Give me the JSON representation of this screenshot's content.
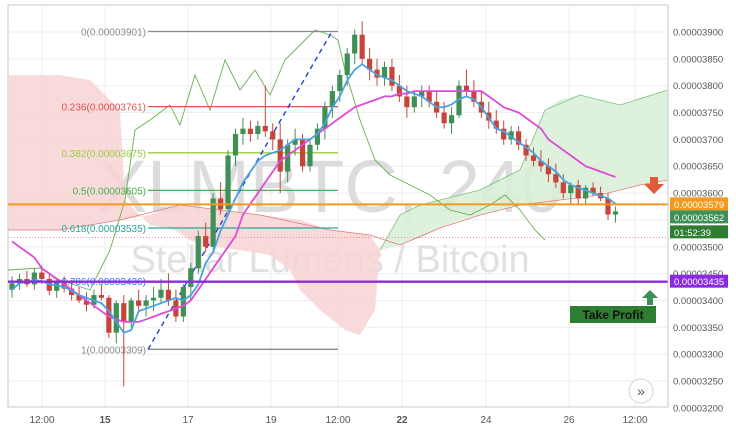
{
  "watermark": {
    "symbol": "XLMBTC, 240",
    "name": "Stellar Lumens / Bitcoin"
  },
  "colors": {
    "up": "#3f8f57",
    "down": "#c6453b",
    "tenkan": "#4aa3e0",
    "kijun": "#e04ad6",
    "chikou": "#6ab04c",
    "cloud_bull": "#d8eed7",
    "cloud_bear": "#f8d3d3",
    "entry_line": "#f29a1f",
    "target_line": "#8a2be2",
    "trend_line": "#1f3fd6",
    "current_price_bg": "#3f8f57",
    "countdown_bg": "#2e7d32"
  },
  "icons": {
    "sell_arrow": "down-arrow-icon",
    "profit_arrow": "up-arrow-icon",
    "scroll_button": "double-chevron-right-icon"
  },
  "labels": {
    "take_profit": "Take Profit",
    "scroll_glyph": "»"
  },
  "price_axis": {
    "ticks": [
      "0.00003900",
      "0.00003850",
      "0.00003800",
      "0.00003750",
      "0.00003700",
      "0.00003650",
      "0.00003600",
      "0.00003550",
      "0.00003500",
      "0.00003450",
      "0.00003400",
      "0.00003350",
      "0.00003300",
      "0.00003250",
      "0.00003200"
    ],
    "markers": {
      "entry": "0.00003579",
      "current": "0.00003562",
      "countdown": "01:52:39",
      "target": "0.00003435"
    }
  },
  "time_axis": {
    "ticks": [
      "12:00",
      "15",
      "17",
      "19",
      "12:00",
      "22",
      "24",
      "26",
      "12:00"
    ]
  },
  "chart_data": {
    "type": "candlestick",
    "symbol": "XLMBTC, 240",
    "ylim": [
      3.2e-05,
      3.9e-05
    ],
    "fibonacci": [
      {
        "ratio": "0",
        "price": "0.00003901",
        "label": "0(0.00003901)",
        "color": "#8a8a8a"
      },
      {
        "ratio": "0.236",
        "price": "0.00003761",
        "label": "0.236(0.00003761)",
        "color": "#d9534f"
      },
      {
        "ratio": "0.382",
        "price": "0.00003675",
        "label": "0.382(0.00003675)",
        "color": "#9ccc3c"
      },
      {
        "ratio": "0.5",
        "price": "0.00003605",
        "label": "0.5(0.00003605)",
        "color": "#4caf50"
      },
      {
        "ratio": "0.618",
        "price": "0.00003535",
        "label": "0.618(0.00003535)",
        "color": "#26a69a"
      },
      {
        "ratio": "0.786",
        "price": "0.00003436",
        "label": "0.786(0.00003436)",
        "color": "#2979ff"
      },
      {
        "ratio": "1",
        "price": "0.00003309",
        "label": "1(0.00003309)",
        "color": "#8a8a8a"
      }
    ],
    "horizontal_lines": [
      {
        "name": "entry",
        "price": 3.579e-05
      },
      {
        "name": "take_profit",
        "price": 3.435e-05
      }
    ],
    "candles": [
      {
        "o": 3420,
        "h": 3445,
        "l": 3405,
        "c": 3432
      },
      {
        "o": 3432,
        "h": 3450,
        "l": 3420,
        "c": 3440
      },
      {
        "o": 3440,
        "h": 3455,
        "l": 3425,
        "c": 3430
      },
      {
        "o": 3430,
        "h": 3460,
        "l": 3420,
        "c": 3452
      },
      {
        "o": 3452,
        "h": 3465,
        "l": 3430,
        "c": 3440
      },
      {
        "o": 3440,
        "h": 3450,
        "l": 3410,
        "c": 3418
      },
      {
        "o": 3418,
        "h": 3440,
        "l": 3405,
        "c": 3435
      },
      {
        "o": 3435,
        "h": 3445,
        "l": 3415,
        "c": 3422
      },
      {
        "o": 3422,
        "h": 3438,
        "l": 3400,
        "c": 3410
      },
      {
        "o": 3410,
        "h": 3425,
        "l": 3395,
        "c": 3400
      },
      {
        "o": 3400,
        "h": 3415,
        "l": 3380,
        "c": 3392
      },
      {
        "o": 3392,
        "h": 3420,
        "l": 3385,
        "c": 3410
      },
      {
        "o": 3410,
        "h": 3430,
        "l": 3400,
        "c": 3405
      },
      {
        "o": 3405,
        "h": 3410,
        "l": 3330,
        "c": 3340
      },
      {
        "o": 3340,
        "h": 3400,
        "l": 3320,
        "c": 3395
      },
      {
        "o": 3395,
        "h": 3410,
        "l": 3240,
        "c": 3360
      },
      {
        "o": 3360,
        "h": 3405,
        "l": 3350,
        "c": 3400
      },
      {
        "o": 3400,
        "h": 3420,
        "l": 3380,
        "c": 3390
      },
      {
        "o": 3390,
        "h": 3410,
        "l": 3370,
        "c": 3400
      },
      {
        "o": 3400,
        "h": 3425,
        "l": 3380,
        "c": 3405
      },
      {
        "o": 3405,
        "h": 3440,
        "l": 3395,
        "c": 3420
      },
      {
        "o": 3420,
        "h": 3450,
        "l": 3390,
        "c": 3400
      },
      {
        "o": 3400,
        "h": 3420,
        "l": 3360,
        "c": 3370
      },
      {
        "o": 3370,
        "h": 3430,
        "l": 3360,
        "c": 3425
      },
      {
        "o": 3425,
        "h": 3470,
        "l": 3400,
        "c": 3460
      },
      {
        "o": 3460,
        "h": 3530,
        "l": 3450,
        "c": 3520
      },
      {
        "o": 3520,
        "h": 3545,
        "l": 3490,
        "c": 3500
      },
      {
        "o": 3500,
        "h": 3600,
        "l": 3495,
        "c": 3590
      },
      {
        "o": 3590,
        "h": 3620,
        "l": 3560,
        "c": 3570
      },
      {
        "o": 3570,
        "h": 3680,
        "l": 3565,
        "c": 3670
      },
      {
        "o": 3670,
        "h": 3720,
        "l": 3650,
        "c": 3710
      },
      {
        "o": 3710,
        "h": 3740,
        "l": 3690,
        "c": 3720
      },
      {
        "o": 3720,
        "h": 3735,
        "l": 3695,
        "c": 3710
      },
      {
        "o": 3710,
        "h": 3735,
        "l": 3700,
        "c": 3725
      },
      {
        "o": 3725,
        "h": 3800,
        "l": 3705,
        "c": 3715
      },
      {
        "o": 3715,
        "h": 3730,
        "l": 3680,
        "c": 3700
      },
      {
        "o": 3700,
        "h": 3730,
        "l": 3600,
        "c": 3640
      },
      {
        "o": 3640,
        "h": 3700,
        "l": 3620,
        "c": 3690
      },
      {
        "o": 3690,
        "h": 3720,
        "l": 3670,
        "c": 3700
      },
      {
        "o": 3700,
        "h": 3710,
        "l": 3640,
        "c": 3650
      },
      {
        "o": 3650,
        "h": 3700,
        "l": 3640,
        "c": 3690
      },
      {
        "o": 3690,
        "h": 3730,
        "l": 3680,
        "c": 3720
      },
      {
        "o": 3720,
        "h": 3770,
        "l": 3700,
        "c": 3760
      },
      {
        "o": 3760,
        "h": 3800,
        "l": 3740,
        "c": 3790
      },
      {
        "o": 3790,
        "h": 3830,
        "l": 3770,
        "c": 3820
      },
      {
        "o": 3820,
        "h": 3870,
        "l": 3800,
        "c": 3860
      },
      {
        "o": 3860,
        "h": 3905,
        "l": 3840,
        "c": 3895
      },
      {
        "o": 3895,
        "h": 3920,
        "l": 3840,
        "c": 3850
      },
      {
        "o": 3850,
        "h": 3870,
        "l": 3810,
        "c": 3830
      },
      {
        "o": 3830,
        "h": 3850,
        "l": 3800,
        "c": 3815
      },
      {
        "o": 3815,
        "h": 3845,
        "l": 3800,
        "c": 3835
      },
      {
        "o": 3835,
        "h": 3850,
        "l": 3790,
        "c": 3800
      },
      {
        "o": 3800,
        "h": 3820,
        "l": 3770,
        "c": 3780
      },
      {
        "o": 3780,
        "h": 3800,
        "l": 3740,
        "c": 3760
      },
      {
        "o": 3760,
        "h": 3790,
        "l": 3750,
        "c": 3780
      },
      {
        "o": 3780,
        "h": 3800,
        "l": 3760,
        "c": 3790
      },
      {
        "o": 3790,
        "h": 3800,
        "l": 3760,
        "c": 3770
      },
      {
        "o": 3770,
        "h": 3790,
        "l": 3740,
        "c": 3750
      },
      {
        "o": 3750,
        "h": 3770,
        "l": 3720,
        "c": 3730
      },
      {
        "o": 3730,
        "h": 3760,
        "l": 3710,
        "c": 3745
      },
      {
        "o": 3745,
        "h": 3810,
        "l": 3740,
        "c": 3800
      },
      {
        "o": 3800,
        "h": 3830,
        "l": 3780,
        "c": 3790
      },
      {
        "o": 3790,
        "h": 3810,
        "l": 3760,
        "c": 3770
      },
      {
        "o": 3770,
        "h": 3790,
        "l": 3740,
        "c": 3750
      },
      {
        "o": 3750,
        "h": 3770,
        "l": 3720,
        "c": 3735
      },
      {
        "o": 3735,
        "h": 3755,
        "l": 3710,
        "c": 3720
      },
      {
        "o": 3720,
        "h": 3735,
        "l": 3690,
        "c": 3700
      },
      {
        "o": 3700,
        "h": 3725,
        "l": 3690,
        "c": 3715
      },
      {
        "o": 3715,
        "h": 3725,
        "l": 3680,
        "c": 3690
      },
      {
        "o": 3690,
        "h": 3700,
        "l": 3660,
        "c": 3670
      },
      {
        "o": 3670,
        "h": 3685,
        "l": 3650,
        "c": 3660
      },
      {
        "o": 3660,
        "h": 3680,
        "l": 3640,
        "c": 3650
      },
      {
        "o": 3650,
        "h": 3665,
        "l": 3620,
        "c": 3635
      },
      {
        "o": 3635,
        "h": 3655,
        "l": 3610,
        "c": 3620
      },
      {
        "o": 3620,
        "h": 3635,
        "l": 3590,
        "c": 3600
      },
      {
        "o": 3600,
        "h": 3620,
        "l": 3580,
        "c": 3615
      },
      {
        "o": 3615,
        "h": 3625,
        "l": 3580,
        "c": 3590
      },
      {
        "o": 3590,
        "h": 3615,
        "l": 3580,
        "c": 3610
      },
      {
        "o": 3610,
        "h": 3620,
        "l": 3595,
        "c": 3600
      },
      {
        "o": 3600,
        "h": 3612,
        "l": 3585,
        "c": 3590
      },
      {
        "o": 3590,
        "h": 3600,
        "l": 3550,
        "c": 3560
      },
      {
        "o": 3560,
        "h": 3575,
        "l": 3545,
        "c": 3566
      }
    ],
    "tenkan": [
      3420,
      3432,
      3435,
      3438,
      3436,
      3430,
      3428,
      3425,
      3418,
      3410,
      3405,
      3400,
      3395,
      3380,
      3360,
      3340,
      3345,
      3380,
      3385,
      3390,
      3395,
      3400,
      3405,
      3400,
      3410,
      3430,
      3470,
      3490,
      3530,
      3560,
      3590,
      3620,
      3640,
      3660,
      3670,
      3675,
      3680,
      3690,
      3700,
      3700,
      3700,
      3710,
      3730,
      3760,
      3780,
      3810,
      3830,
      3840,
      3830,
      3820,
      3815,
      3810,
      3800,
      3790,
      3785,
      3780,
      3770,
      3760,
      3760,
      3765,
      3775,
      3780,
      3775,
      3760,
      3740,
      3720,
      3715,
      3705,
      3695,
      3685,
      3675,
      3660,
      3650,
      3640,
      3625,
      3615,
      3610,
      3605,
      3600,
      3595,
      3590,
      3580
    ],
    "kijun": [
      3510,
      3500,
      3490,
      3480,
      3460,
      3450,
      3440,
      3430,
      3420,
      3410,
      3400,
      3390,
      3380,
      3370,
      3365,
      3360,
      3360,
      3360,
      3365,
      3370,
      3375,
      3380,
      3385,
      3390,
      3400,
      3420,
      3440,
      3460,
      3480,
      3500,
      3520,
      3560,
      3580,
      3600,
      3620,
      3640,
      3660,
      3670,
      3680,
      3690,
      3700,
      3710,
      3720,
      3730,
      3740,
      3750,
      3760,
      3765,
      3770,
      3775,
      3780,
      3780,
      3785,
      3785,
      3790,
      3790,
      3790,
      3790,
      3790,
      3790,
      3790,
      3790,
      3790,
      3790,
      3780,
      3770,
      3760,
      3755,
      3750,
      3740,
      3730,
      3720,
      3700,
      3690,
      3680,
      3670,
      3660,
      3650,
      3645,
      3640,
      3635,
      3630
    ]
  }
}
